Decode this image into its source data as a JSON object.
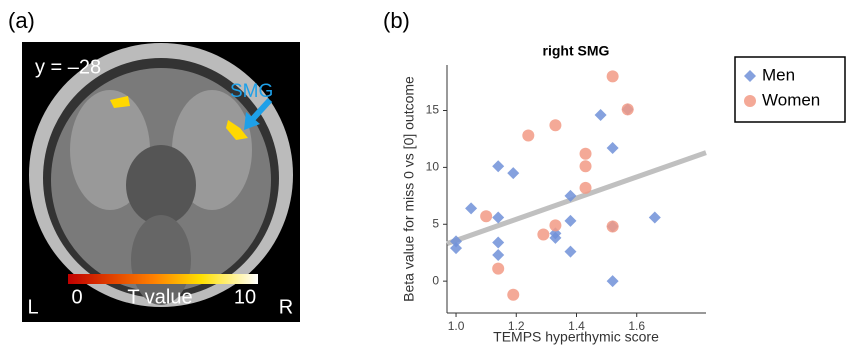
{
  "panel_a": {
    "label": "(a)",
    "slice": "y = –28",
    "region": "SMG",
    "colorbar_min": "0",
    "colorbar_title": "T value",
    "colorbar_max": "10",
    "left": "L",
    "right": "R"
  },
  "chart_data": {
    "type": "scatter",
    "panel_label": "(b)",
    "title": "right SMG",
    "x_label": "TEMPS hyperthymic score",
    "y_label": "Beta value for miss 0 vs [0] outcome",
    "xlim": [
      0.97,
      1.83
    ],
    "ylim": [
      -2.8,
      19
    ],
    "xticks": [
      {
        "value": 1.0,
        "label": "1.0"
      },
      {
        "value": 1.2,
        "label": "1.2"
      },
      {
        "value": 1.4,
        "label": "1.4"
      },
      {
        "value": 1.6,
        "label": "1.6"
      }
    ],
    "yticks": [
      0,
      5,
      10,
      15
    ],
    "series": [
      {
        "name": "Men",
        "color": "#7090d8",
        "marker": "diamond",
        "x": [
          1.0,
          1.0,
          1.05,
          1.14,
          1.14,
          1.14,
          1.14,
          1.19,
          1.33,
          1.33,
          1.38,
          1.38,
          1.38,
          1.48,
          1.52,
          1.52,
          1.52,
          1.57,
          1.66
        ],
        "values": [
          3.5,
          2.9,
          6.4,
          10.1,
          5.6,
          3.4,
          2.3,
          9.5,
          4.2,
          3.8,
          7.5,
          5.3,
          2.6,
          14.6,
          11.7,
          4.8,
          0.0,
          15.1,
          5.6
        ]
      },
      {
        "name": "Women",
        "color": "#f29a85",
        "marker": "circle",
        "x": [
          1.1,
          1.14,
          1.19,
          1.24,
          1.29,
          1.33,
          1.33,
          1.43,
          1.43,
          1.43,
          1.52,
          1.52,
          1.57
        ],
        "values": [
          5.7,
          1.1,
          -1.2,
          12.8,
          4.1,
          13.7,
          4.9,
          11.2,
          10.1,
          8.2,
          18.0,
          4.8,
          15.1
        ]
      }
    ],
    "fit_line": {
      "x": [
        0.97,
        1.83
      ],
      "y": [
        3.3,
        11.3
      ],
      "color": "#c0c0c0"
    }
  }
}
